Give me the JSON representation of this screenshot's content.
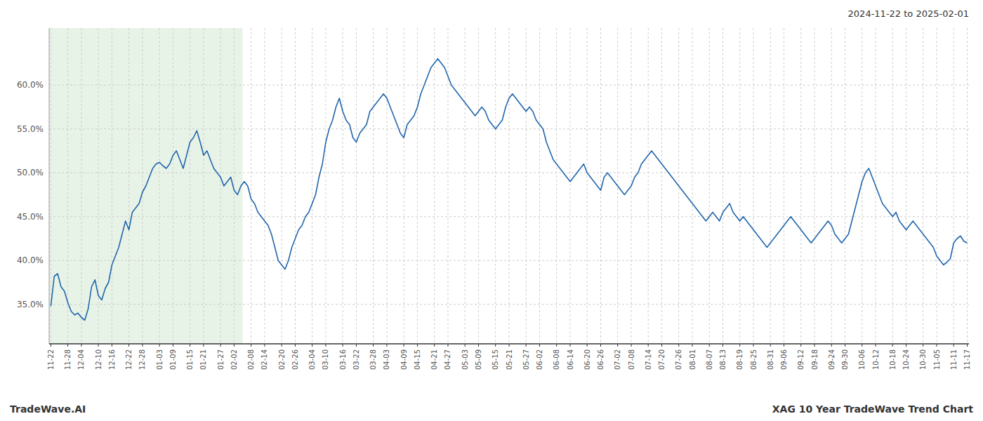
{
  "chart_data": {
    "type": "line",
    "title": "2024-11-22 to 2025-02-01",
    "annotations": [
      "TradeWave.AI",
      "XAG 10 Year TradeWave Trend Chart"
    ],
    "color": "#2166ac",
    "grid": true,
    "highlight": {
      "to": "02-02",
      "color": "#d6ead6"
    },
    "ylim": [
      30.5,
      66.5
    ],
    "yticks": [
      {
        "value": 35.0,
        "label": "35.0%"
      },
      {
        "value": 40.0,
        "label": "40.0%"
      },
      {
        "value": 45.0,
        "label": "45.0%"
      },
      {
        "value": 50.0,
        "label": "50.0%"
      },
      {
        "value": 55.0,
        "label": "55.0%"
      },
      {
        "value": 60.0,
        "label": "60.0%"
      }
    ],
    "categories": [
      "11-22",
      null,
      null,
      null,
      null,
      "11-28",
      null,
      null,
      null,
      "12-04",
      null,
      null,
      null,
      null,
      "12-10",
      null,
      null,
      null,
      "12-16",
      null,
      null,
      null,
      null,
      "12-22",
      null,
      null,
      null,
      "12-28",
      null,
      null,
      null,
      null,
      "01-03",
      null,
      null,
      null,
      "01-09",
      null,
      null,
      null,
      null,
      "01-15",
      null,
      null,
      null,
      "01-21",
      null,
      null,
      null,
      null,
      "01-27",
      null,
      null,
      null,
      "02-02",
      null,
      null,
      null,
      null,
      "02-08",
      null,
      null,
      null,
      "02-14",
      null,
      null,
      null,
      null,
      "02-20",
      null,
      null,
      null,
      "02-26",
      null,
      null,
      null,
      null,
      "03-04",
      null,
      null,
      null,
      "03-10",
      null,
      null,
      null,
      null,
      "03-16",
      null,
      null,
      null,
      "03-22",
      null,
      null,
      null,
      null,
      "03-28",
      null,
      null,
      null,
      "04-03",
      null,
      null,
      null,
      null,
      "04-09",
      null,
      null,
      null,
      "04-15",
      null,
      null,
      null,
      null,
      "04-21",
      null,
      null,
      null,
      "04-27",
      null,
      null,
      null,
      null,
      "05-03",
      null,
      null,
      null,
      "05-09",
      null,
      null,
      null,
      null,
      "05-15",
      null,
      null,
      null,
      "05-21",
      null,
      null,
      null,
      null,
      "05-27",
      null,
      null,
      null,
      "06-02",
      null,
      null,
      null,
      null,
      "06-08",
      null,
      null,
      null,
      "06-14",
      null,
      null,
      null,
      null,
      "06-20",
      null,
      null,
      null,
      "06-26",
      null,
      null,
      null,
      null,
      "07-02",
      null,
      null,
      null,
      "07-08",
      null,
      null,
      null,
      null,
      "07-14",
      null,
      null,
      null,
      "07-20",
      null,
      null,
      null,
      null,
      "07-26",
      null,
      null,
      null,
      "08-01",
      null,
      null,
      null,
      null,
      "08-07",
      null,
      null,
      null,
      "08-13",
      null,
      null,
      null,
      null,
      "08-19",
      null,
      null,
      null,
      "08-25",
      null,
      null,
      null,
      null,
      "08-31",
      null,
      null,
      null,
      "09-06",
      null,
      null,
      null,
      null,
      "09-12",
      null,
      null,
      null,
      "09-18",
      null,
      null,
      null,
      null,
      "09-24",
      null,
      null,
      null,
      "09-30",
      null,
      null,
      null,
      null,
      "10-06",
      null,
      null,
      null,
      "10-12",
      null,
      null,
      null,
      null,
      "10-18",
      null,
      null,
      null,
      "10-24",
      null,
      null,
      null,
      null,
      "10-30",
      null,
      null,
      null,
      "11-05",
      null,
      null,
      null,
      null,
      "11-11",
      null,
      null,
      null,
      "11-17"
    ],
    "values": [
      34.8,
      38.2,
      38.5,
      37.0,
      36.5,
      35.2,
      34.2,
      33.8,
      34.0,
      33.5,
      33.2,
      34.5,
      37.0,
      37.8,
      36.0,
      35.5,
      36.8,
      37.5,
      39.5,
      40.5,
      41.5,
      43.0,
      44.5,
      43.5,
      45.5,
      46.0,
      46.5,
      47.8,
      48.5,
      49.5,
      50.5,
      51.0,
      51.2,
      50.8,
      50.5,
      51.0,
      52.0,
      52.5,
      51.5,
      50.5,
      52.0,
      53.5,
      54.0,
      54.8,
      53.5,
      52.0,
      52.5,
      51.5,
      50.5,
      50.0,
      49.5,
      48.5,
      49.0,
      49.5,
      48.0,
      47.5,
      48.5,
      49.0,
      48.5,
      47.0,
      46.5,
      45.5,
      45.0,
      44.5,
      44.0,
      43.0,
      41.5,
      40.0,
      39.5,
      39.0,
      40.0,
      41.5,
      42.5,
      43.5,
      44.0,
      45.0,
      45.5,
      46.5,
      47.5,
      49.5,
      51.0,
      53.5,
      55.0,
      56.0,
      57.5,
      58.5,
      57.0,
      56.0,
      55.5,
      54.0,
      53.5,
      54.5,
      55.0,
      55.5,
      57.0,
      57.5,
      58.0,
      58.5,
      59.0,
      58.5,
      57.5,
      56.5,
      55.5,
      54.5,
      54.0,
      55.5,
      56.0,
      56.5,
      57.5,
      59.0,
      60.0,
      61.0,
      62.0,
      62.5,
      63.0,
      62.5,
      62.0,
      61.0,
      60.0,
      59.5,
      59.0,
      58.5,
      58.0,
      57.5,
      57.0,
      56.5,
      57.0,
      57.5,
      57.0,
      56.0,
      55.5,
      55.0,
      55.5,
      56.0,
      57.5,
      58.5,
      59.0,
      58.5,
      58.0,
      57.5,
      57.0,
      57.5,
      57.0,
      56.0,
      55.5,
      55.0,
      53.5,
      52.5,
      51.5,
      51.0,
      50.5,
      50.0,
      49.5,
      49.0,
      49.5,
      50.0,
      50.5,
      51.0,
      50.0,
      49.5,
      49.0,
      48.5,
      48.0,
      49.5,
      50.0,
      49.5,
      49.0,
      48.5,
      48.0,
      47.5,
      48.0,
      48.5,
      49.5,
      50.0,
      51.0,
      51.5,
      52.0,
      52.5,
      52.0,
      51.5,
      51.0,
      50.5,
      50.0,
      49.5,
      49.0,
      48.5,
      48.0,
      47.5,
      47.0,
      46.5,
      46.0,
      45.5,
      45.0,
      44.5,
      45.0,
      45.5,
      45.0,
      44.5,
      45.5,
      46.0,
      46.5,
      45.5,
      45.0,
      44.5,
      45.0,
      44.5,
      44.0,
      43.5,
      43.0,
      42.5,
      42.0,
      41.5,
      42.0,
      42.5,
      43.0,
      43.5,
      44.0,
      44.5,
      45.0,
      44.5,
      44.0,
      43.5,
      43.0,
      42.5,
      42.0,
      42.5,
      43.0,
      43.5,
      44.0,
      44.5,
      44.0,
      43.0,
      42.5,
      42.0,
      42.5,
      43.0,
      44.5,
      46.0,
      47.5,
      49.0,
      50.0,
      50.5,
      49.5,
      48.5,
      47.5,
      46.5,
      46.0,
      45.5,
      45.0,
      45.5,
      44.5,
      44.0,
      43.5,
      44.0,
      44.5,
      44.0,
      43.5,
      43.0,
      42.5,
      42.0,
      41.5,
      40.5,
      40.0,
      39.5,
      39.8,
      40.2,
      42.0,
      42.5,
      42.8,
      42.2,
      42.0
    ]
  }
}
